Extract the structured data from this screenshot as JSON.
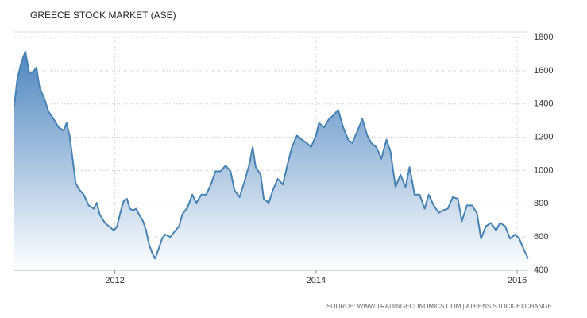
{
  "chart_data": {
    "type": "area",
    "title": "GREECE STOCK MARKET (ASE)",
    "source": "SOURCE: WWW.TRADINGECONOMICS.COM | ATHENS STOCK EXCHANGE",
    "color": "#4682b4",
    "grid": true,
    "xlim": [
      2011.0,
      2016.11
    ],
    "xticks": [
      2012,
      2014,
      2016
    ],
    "ylim": [
      400,
      1800
    ],
    "yticks": [
      400,
      600,
      800,
      1000,
      1200,
      1400,
      1600,
      1800
    ],
    "x": [
      2011.0,
      2011.03,
      2011.07,
      2011.11,
      2011.15,
      2011.19,
      2011.22,
      2011.25,
      2011.3,
      2011.34,
      2011.39,
      2011.44,
      2011.49,
      2011.52,
      2011.55,
      2011.58,
      2011.61,
      2011.64,
      2011.69,
      2011.74,
      2011.79,
      2011.82,
      2011.85,
      2011.9,
      2011.94,
      2011.99,
      2012.02,
      2012.06,
      2012.09,
      2012.12,
      2012.15,
      2012.18,
      2012.21,
      2012.25,
      2012.28,
      2012.31,
      2012.34,
      2012.37,
      2012.4,
      2012.43,
      2012.47,
      2012.5,
      2012.55,
      2012.59,
      2012.64,
      2012.67,
      2012.72,
      2012.77,
      2012.81,
      2012.86,
      2012.91,
      2012.96,
      2013.0,
      2013.05,
      2013.1,
      2013.15,
      2013.19,
      2013.24,
      2013.29,
      2013.34,
      2013.37,
      2013.4,
      2013.45,
      2013.48,
      2013.53,
      2013.57,
      2013.62,
      2013.67,
      2013.72,
      2013.76,
      2013.81,
      2013.86,
      2013.91,
      2013.95,
      2014.0,
      2014.03,
      2014.08,
      2014.13,
      2014.17,
      2014.22,
      2014.27,
      2014.32,
      2014.36,
      2014.41,
      2014.46,
      2014.51,
      2014.55,
      2014.6,
      2014.65,
      2014.7,
      2014.74,
      2014.79,
      2014.84,
      2014.89,
      2014.93,
      2014.98,
      2015.03,
      2015.08,
      2015.12,
      2015.17,
      2015.22,
      2015.26,
      2015.31,
      2015.36,
      2015.41,
      2015.45,
      2015.5,
      2015.55,
      2015.6,
      2015.64,
      2015.69,
      2015.74,
      2015.79,
      2015.83,
      2015.88,
      2015.93,
      2015.98,
      2016.02,
      2016.07,
      2016.11
    ],
    "values": [
      1390,
      1550,
      1650,
      1715,
      1585,
      1595,
      1620,
      1500,
      1430,
      1355,
      1310,
      1260,
      1240,
      1285,
      1210,
      1070,
      925,
      890,
      855,
      790,
      770,
      805,
      735,
      685,
      665,
      640,
      660,
      760,
      820,
      830,
      770,
      760,
      770,
      725,
      695,
      640,
      555,
      505,
      470,
      520,
      590,
      615,
      600,
      630,
      665,
      735,
      775,
      855,
      805,
      855,
      855,
      925,
      995,
      995,
      1030,
      995,
      880,
      840,
      935,
      1045,
      1140,
      1020,
      975,
      830,
      805,
      880,
      950,
      915,
      1045,
      1140,
      1210,
      1185,
      1165,
      1140,
      1210,
      1285,
      1260,
      1310,
      1330,
      1365,
      1260,
      1185,
      1165,
      1235,
      1310,
      1210,
      1165,
      1140,
      1070,
      1185,
      1115,
      900,
      975,
      900,
      1020,
      855,
      855,
      770,
      855,
      790,
      745,
      760,
      770,
      840,
      830,
      695,
      790,
      790,
      745,
      590,
      665,
      685,
      640,
      685,
      665,
      590,
      615,
      590,
      520,
      470
    ]
  }
}
